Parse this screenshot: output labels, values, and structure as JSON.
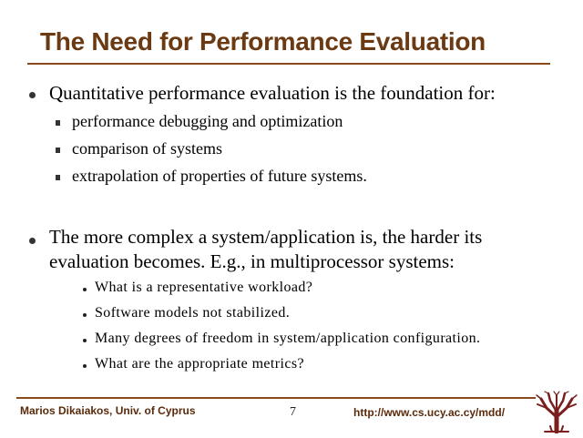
{
  "slide": {
    "title": "The Need for Performance Evaluation",
    "bullets": [
      {
        "text": "Quantitative performance evaluation is the foundation for:",
        "sub": [
          "performance debugging and optimization",
          "comparison of systems",
          "extrapolation of properties of future systems."
        ]
      },
      {
        "line1": "The more complex a system/application is, the harder its",
        "line2": "evaluation becomes. E.g., in multiprocessor systems:",
        "sub": [
          "What is a representative workload?",
          "Software models not stabilized.",
          "Many degrees of freedom in system/application configuration.",
          "What are the appropriate metrics?"
        ]
      }
    ]
  },
  "footer": {
    "author": "Marios Dikaiakos, Univ. of Cyprus",
    "page_number": "7",
    "url": "http://www.cs.ucy.ac.cy/mdd/"
  },
  "colors": {
    "title": "#6b3a13",
    "rule": "#8b4a1c",
    "logo": "#7a1e1e"
  },
  "icons": {
    "logo": "university-tree-logo-icon"
  }
}
